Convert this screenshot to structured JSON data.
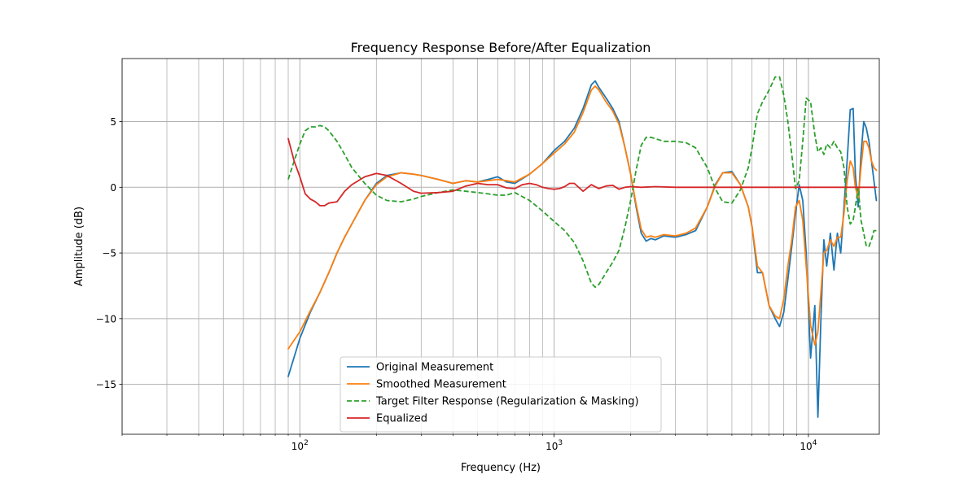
{
  "chart_data": {
    "type": "line",
    "title": "Frequency Response Before/After Equalization",
    "xlabel": "Frequency (Hz)",
    "ylabel": "Amplitude (dB)",
    "xscale": "log",
    "xlim": [
      20,
      19000
    ],
    "ylim": [
      -18.8,
      9.8
    ],
    "grid": true,
    "legend_position": "lower-center",
    "x_ticks": [
      {
        "value": 100,
        "base": "10",
        "exp": "2"
      },
      {
        "value": 1000,
        "base": "10",
        "exp": "3"
      },
      {
        "value": 10000,
        "base": "10",
        "exp": "4"
      }
    ],
    "y_ticks": [
      {
        "value": 5,
        "label": "5"
      },
      {
        "value": 0,
        "label": "0"
      },
      {
        "value": -5,
        "label": "−5"
      },
      {
        "value": -10,
        "label": "−10"
      },
      {
        "value": -15,
        "label": "−15"
      }
    ],
    "series": [
      {
        "name": "Original Measurement",
        "color": "#1f77b4",
        "dash": "solid",
        "x": [
          90,
          100,
          110,
          120,
          130,
          140,
          150,
          160,
          180,
          200,
          220,
          250,
          280,
          300,
          350,
          400,
          450,
          500,
          550,
          600,
          650,
          700,
          800,
          900,
          1000,
          1100,
          1200,
          1300,
          1400,
          1450,
          1500,
          1600,
          1700,
          1800,
          1900,
          2000,
          2100,
          2200,
          2300,
          2400,
          2500,
          2700,
          3000,
          3300,
          3600,
          4000,
          4300,
          4600,
          5000,
          5400,
          5800,
          6000,
          6300,
          6600,
          7000,
          7400,
          7700,
          8000,
          8300,
          8600,
          8900,
          9200,
          9500,
          9800,
          10200,
          10600,
          10900,
          11200,
          11500,
          11800,
          12200,
          12600,
          13000,
          13400,
          13800,
          14200,
          14600,
          15000,
          15300,
          15700,
          16100,
          16500,
          16900,
          17300,
          17700,
          18100,
          18500
        ],
        "y": [
          -14.4,
          -11.5,
          -9.5,
          -8,
          -6.5,
          -5,
          -3.8,
          -2.8,
          -1,
          0.3,
          0.9,
          1.1,
          1,
          0.9,
          0.6,
          0.3,
          0.5,
          0.4,
          0.6,
          0.8,
          0.4,
          0.3,
          1,
          1.8,
          2.8,
          3.5,
          4.5,
          6,
          7.8,
          8.1,
          7.6,
          6.8,
          6,
          5,
          3,
          1,
          -1.5,
          -3.5,
          -4.1,
          -3.9,
          -4,
          -3.7,
          -3.8,
          -3.6,
          -3.3,
          -1.5,
          0.2,
          1.1,
          1.2,
          0.2,
          -1.5,
          -3,
          -6.5,
          -6.5,
          -9,
          -10,
          -10.6,
          -9.5,
          -7,
          -4.5,
          -2,
          0.2,
          -1,
          -5,
          -13,
          -9,
          -17.5,
          -10,
          -4,
          -6,
          -3.5,
          -6.3,
          -3.5,
          -5,
          -1.5,
          2,
          5.9,
          6,
          1,
          -1.5,
          2.5,
          5,
          4.5,
          3.5,
          2,
          0.5,
          -1
        ]
      },
      {
        "name": "Smoothed Measurement",
        "color": "#ff7f0e",
        "dash": "solid",
        "x": [
          90,
          100,
          110,
          120,
          130,
          140,
          150,
          160,
          180,
          200,
          220,
          250,
          280,
          300,
          350,
          400,
          450,
          500,
          550,
          600,
          650,
          700,
          800,
          900,
          1000,
          1100,
          1200,
          1300,
          1400,
          1450,
          1500,
          1600,
          1700,
          1800,
          1900,
          2000,
          2100,
          2200,
          2300,
          2400,
          2500,
          2700,
          3000,
          3300,
          3600,
          4000,
          4300,
          4600,
          5000,
          5400,
          5800,
          6000,
          6300,
          6600,
          7000,
          7400,
          7700,
          8000,
          8300,
          8600,
          8900,
          9200,
          9500,
          9800,
          10200,
          10600,
          10900,
          11200,
          11500,
          11800,
          12200,
          12600,
          13000,
          13400,
          13800,
          14200,
          14600,
          15000,
          15300,
          15700,
          16100,
          16500,
          16900,
          17300,
          17700,
          18100,
          18500
        ],
        "y": [
          -12.3,
          -11,
          -9.4,
          -8,
          -6.5,
          -5,
          -3.8,
          -2.8,
          -1,
          0.2,
          0.8,
          1.1,
          1,
          0.9,
          0.6,
          0.3,
          0.5,
          0.4,
          0.5,
          0.6,
          0.5,
          0.4,
          1,
          1.8,
          2.6,
          3.3,
          4.2,
          5.7,
          7.4,
          7.7,
          7.4,
          6.5,
          5.8,
          4.8,
          3,
          1,
          -1.3,
          -3.2,
          -3.8,
          -3.7,
          -3.8,
          -3.6,
          -3.7,
          -3.5,
          -3.1,
          -1.5,
          0.1,
          1.1,
          1.1,
          0.2,
          -1.5,
          -3,
          -6,
          -6.5,
          -9,
          -9.8,
          -10,
          -8.5,
          -6,
          -4,
          -1.5,
          -1,
          -2.5,
          -6,
          -10.5,
          -12,
          -11,
          -8,
          -5,
          -4.8,
          -4,
          -4.5,
          -3.8,
          -3.8,
          -2,
          0.5,
          2,
          1.5,
          0,
          -0.8,
          1.5,
          3.5,
          3.5,
          3,
          2,
          1.5,
          1.3
        ]
      },
      {
        "name": "Target Filter Response (Regularization & Masking)",
        "color": "#2ca02c",
        "dash": "dashed",
        "x": [
          90,
          95,
          100,
          105,
          110,
          115,
          120,
          125,
          130,
          140,
          150,
          160,
          180,
          200,
          220,
          250,
          280,
          300,
          350,
          400,
          450,
          500,
          550,
          600,
          650,
          700,
          800,
          900,
          1000,
          1100,
          1200,
          1300,
          1400,
          1450,
          1500,
          1600,
          1700,
          1800,
          1900,
          2000,
          2100,
          2200,
          2300,
          2400,
          2500,
          2700,
          3000,
          3300,
          3600,
          4000,
          4300,
          4600,
          5000,
          5400,
          5800,
          6000,
          6300,
          6600,
          7000,
          7400,
          7700,
          8000,
          8300,
          8600,
          8900,
          9200,
          9500,
          9800,
          10200,
          10600,
          10900,
          11200,
          11500,
          11800,
          12200,
          12600,
          13000,
          13400,
          13800,
          14200,
          14600,
          15000,
          15300,
          15700,
          16100,
          16500,
          16900,
          17300,
          17700,
          18100,
          18500
        ],
        "y": [
          0.6,
          2,
          3.3,
          4.3,
          4.6,
          4.6,
          4.7,
          4.6,
          4.3,
          3.5,
          2.5,
          1.5,
          0.3,
          -0.6,
          -1,
          -1.1,
          -0.9,
          -0.7,
          -0.4,
          -0.2,
          -0.3,
          -0.4,
          -0.5,
          -0.6,
          -0.6,
          -0.4,
          -1,
          -1.8,
          -2.6,
          -3.3,
          -4.2,
          -5.6,
          -7.3,
          -7.6,
          -7.4,
          -6.5,
          -5.7,
          -4.8,
          -3,
          -1,
          1.3,
          3.2,
          3.8,
          3.8,
          3.7,
          3.5,
          3.5,
          3.4,
          3,
          1.5,
          -0.1,
          -1.1,
          -1.2,
          -0.2,
          1.5,
          3,
          5.6,
          6.5,
          7.4,
          8.4,
          8.4,
          7,
          5,
          2.5,
          -0.1,
          0.5,
          3.5,
          6.8,
          6.5,
          4,
          2.7,
          3,
          2.5,
          3.3,
          3,
          3.5,
          3,
          2.7,
          1.5,
          -1.5,
          -2.8,
          -2.5,
          -1.5,
          0,
          -2.5,
          -3.5,
          -4.5,
          -4.5,
          -4,
          -3.3,
          -3.3
        ]
      },
      {
        "name": "Equalized",
        "color": "#d62728",
        "dash": "solid",
        "x": [
          90,
          95,
          100,
          105,
          110,
          115,
          120,
          125,
          130,
          140,
          150,
          160,
          180,
          200,
          220,
          250,
          280,
          300,
          350,
          400,
          450,
          500,
          550,
          600,
          650,
          700,
          750,
          800,
          850,
          900,
          950,
          1000,
          1050,
          1100,
          1150,
          1200,
          1300,
          1400,
          1500,
          1600,
          1700,
          1800,
          1900,
          2000,
          2200,
          2500,
          3000,
          4000,
          5000,
          6000,
          8000,
          10000,
          12000,
          15000,
          18500
        ],
        "y": [
          3.7,
          2,
          0.8,
          -0.5,
          -0.9,
          -1.1,
          -1.4,
          -1.4,
          -1.2,
          -1.1,
          -0.3,
          0.2,
          0.8,
          1.05,
          0.9,
          0.3,
          -0.3,
          -0.45,
          -0.4,
          -0.3,
          0.1,
          0.3,
          0.2,
          0.2,
          -0.05,
          -0.1,
          0.2,
          0.3,
          0.2,
          0,
          -0.1,
          -0.15,
          -0.1,
          0.05,
          0.3,
          0.3,
          -0.3,
          0.2,
          -0.1,
          0.1,
          0.15,
          -0.15,
          0,
          0.05,
          0,
          0.05,
          0,
          0,
          0,
          0,
          0,
          0,
          0,
          0,
          0
        ]
      }
    ]
  }
}
